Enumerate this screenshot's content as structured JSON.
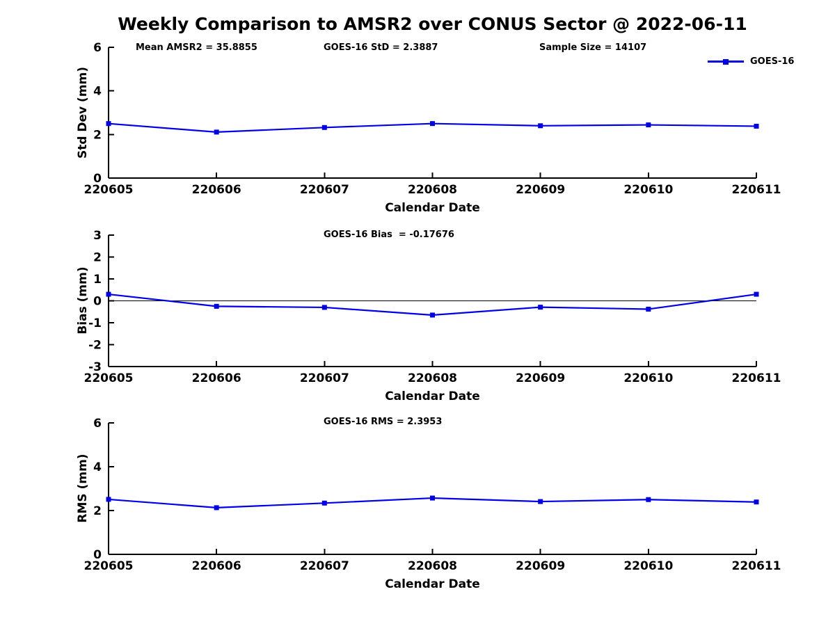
{
  "figure": {
    "title": "Weekly Comparison to AMSR2 over CONUS Sector @ 2022-06-11",
    "legend": {
      "label": "GOES-16",
      "color": "#0000e6"
    }
  },
  "chart_data": [
    {
      "type": "line",
      "categories": [
        "220605",
        "220606",
        "220607",
        "220608",
        "220609",
        "220610",
        "220611"
      ],
      "series": [
        {
          "name": "GOES-16",
          "color": "#0000e6",
          "values": [
            2.5,
            2.11,
            2.32,
            2.5,
            2.4,
            2.44,
            2.38
          ]
        }
      ],
      "xlabel": "Calendar Date",
      "ylabel": "Std Dev (mm)",
      "ylim": [
        0,
        6
      ],
      "yticks": [
        6,
        4,
        2,
        0
      ],
      "grid": false,
      "zero_line": false,
      "legend_position": "top-right",
      "annotations": [
        "Mean AMSR2 = 35.8855",
        "GOES-16 StD = 2.3887",
        "Sample Size = 14107"
      ]
    },
    {
      "type": "line",
      "categories": [
        "220605",
        "220606",
        "220607",
        "220608",
        "220609",
        "220610",
        "220611"
      ],
      "series": [
        {
          "name": "GOES-16",
          "color": "#0000e6",
          "values": [
            0.3,
            -0.25,
            -0.3,
            -0.65,
            -0.29,
            -0.38,
            0.3
          ]
        }
      ],
      "xlabel": "Calendar Date",
      "ylabel": "Bias (mm)",
      "ylim": [
        -3,
        3
      ],
      "yticks": [
        3,
        2,
        1,
        0,
        -1,
        -2,
        -3
      ],
      "grid": false,
      "zero_line": true,
      "annotation": "GOES-16 Bias  = -0.17676"
    },
    {
      "type": "line",
      "categories": [
        "220605",
        "220606",
        "220607",
        "220608",
        "220609",
        "220610",
        "220611"
      ],
      "series": [
        {
          "name": "GOES-16",
          "color": "#0000e6",
          "values": [
            2.51,
            2.13,
            2.34,
            2.57,
            2.41,
            2.5,
            2.39
          ]
        }
      ],
      "xlabel": "Calendar Date",
      "ylabel": "RMS (mm)",
      "ylim": [
        0,
        6
      ],
      "yticks": [
        6,
        4,
        2,
        0
      ],
      "grid": false,
      "zero_line": false,
      "annotation": "GOES-16 RMS = 2.3953"
    }
  ]
}
